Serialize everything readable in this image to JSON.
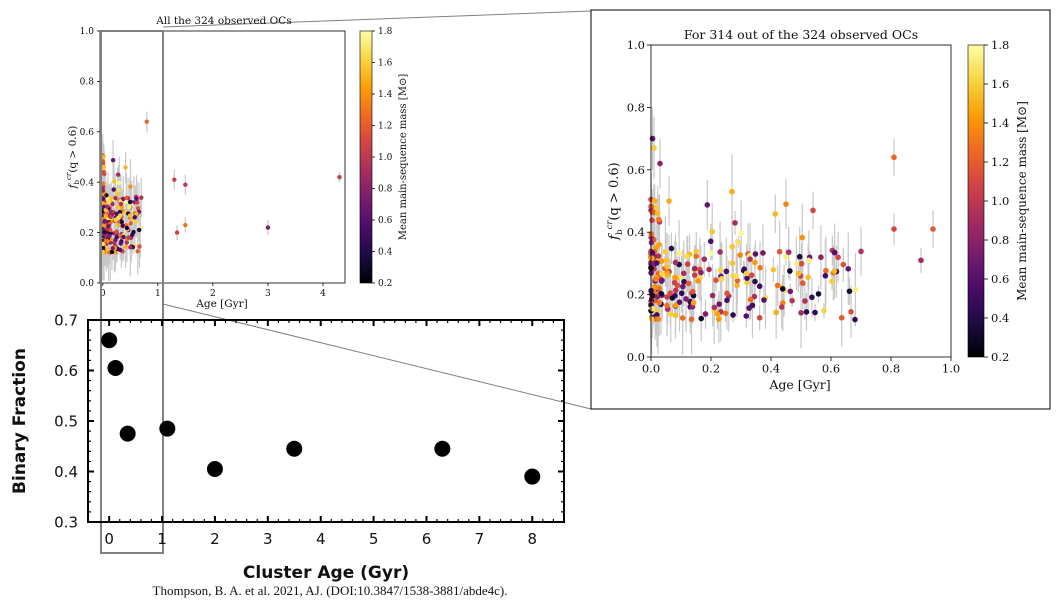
{
  "caption": "Thompson, B. A. et al. 2021, AJ. (DOI:10.3847/1538-3881/abde4c).",
  "colorbar": {
    "label": "Mean main-sequence mass [M⊙]",
    "ticks": [
      "0.2",
      "0.4",
      "0.6",
      "0.8",
      "1.0",
      "1.2",
      "1.4",
      "1.6",
      "1.8"
    ],
    "colormap_stops": [
      "#000004",
      "#1b0c41",
      "#4a0c6b",
      "#781c6d",
      "#a52c60",
      "#cf4446",
      "#ed6925",
      "#fb9b06",
      "#f7d13d",
      "#fcffa4"
    ]
  },
  "colors": {
    "frame": "#000000",
    "errorbar": "#c8c8c8",
    "zoom_box": "#808080",
    "connector": "#808080"
  },
  "chart_data": [
    {
      "id": "top_left",
      "type": "scatter",
      "title": "All the 324 observed OCs",
      "xlabel": "Age [Gyr]",
      "ylabel": "f_b^{cr}(q > 0.6)",
      "xlim": [
        -0.05,
        4.4
      ],
      "ylim": [
        0.0,
        1.0
      ],
      "xticks": [
        "0",
        "1",
        "2",
        "3",
        "4"
      ],
      "yticks": [
        "0.0",
        "0.2",
        "0.4",
        "0.6",
        "0.8",
        "1.0"
      ],
      "grid": false,
      "highlighted_points": [
        {
          "x": 0.8,
          "y": 0.64,
          "err": 0.04,
          "mass": 1.25
        },
        {
          "x": 1.3,
          "y": 0.41,
          "err": 0.04,
          "mass": 1.05
        },
        {
          "x": 1.5,
          "y": 0.39,
          "err": 0.04,
          "mass": 1.0
        },
        {
          "x": 1.35,
          "y": 0.2,
          "err": 0.03,
          "mass": 1.1
        },
        {
          "x": 1.5,
          "y": 0.23,
          "err": 0.03,
          "mass": 1.3
        },
        {
          "x": 3.0,
          "y": 0.22,
          "err": 0.03,
          "mass": 0.75
        },
        {
          "x": 4.3,
          "y": 0.42,
          "err": 0.02,
          "mass": 1.05
        }
      ]
    },
    {
      "id": "right_zoom",
      "type": "scatter",
      "title": "For 314 out of the 324 observed OCs",
      "xlabel": "Age [Gyr]",
      "ylabel": "f_b^{cr}(q > 0.6)",
      "xlim": [
        0.0,
        1.0
      ],
      "ylim": [
        0.0,
        1.0
      ],
      "xticks": [
        "0.0",
        "0.2",
        "0.4",
        "0.6",
        "0.8",
        "1.0"
      ],
      "yticks": [
        "0.0",
        "0.2",
        "0.4",
        "0.6",
        "0.8",
        "1.0"
      ],
      "grid": false,
      "highlighted_points": [
        {
          "x": 0.81,
          "y": 0.64,
          "err": 0.06,
          "mass": 1.25
        },
        {
          "x": 0.94,
          "y": 0.41,
          "err": 0.06,
          "mass": 1.2
        },
        {
          "x": 0.9,
          "y": 0.31,
          "err": 0.04,
          "mass": 0.9
        },
        {
          "x": 0.81,
          "y": 0.41,
          "err": 0.05,
          "mass": 1.1
        },
        {
          "x": 0.45,
          "y": 0.49,
          "err": 0.08,
          "mass": 1.35
        },
        {
          "x": 0.54,
          "y": 0.47,
          "err": 0.06,
          "mass": 1.1
        },
        {
          "x": 0.68,
          "y": 0.12,
          "err": 0.02,
          "mass": 0.45
        },
        {
          "x": 0.005,
          "y": 0.7,
          "err": 0.1,
          "mass": 0.6
        },
        {
          "x": 0.01,
          "y": 0.67,
          "err": 0.1,
          "mass": 1.6
        },
        {
          "x": 0.03,
          "y": 0.62,
          "err": 0.08,
          "mass": 0.8
        },
        {
          "x": 0.06,
          "y": 0.5,
          "err": 0.08,
          "mass": 1.5
        },
        {
          "x": 0.27,
          "y": 0.53,
          "err": 0.12,
          "mass": 1.5
        }
      ]
    },
    {
      "id": "bottom_left",
      "type": "scatter",
      "xlabel": "Cluster Age (Gyr)",
      "ylabel": "Binary Fraction",
      "xlim": [
        -0.4,
        8.6
      ],
      "ylim": [
        0.3,
        0.7
      ],
      "xticks": [
        "0",
        "1",
        "2",
        "3",
        "4",
        "5",
        "6",
        "7",
        "8"
      ],
      "yticks": [
        "0.3",
        "0.4",
        "0.5",
        "0.6",
        "0.7"
      ],
      "grid": false,
      "x": [
        0.0,
        0.12,
        0.35,
        1.1,
        2.0,
        3.5,
        6.3,
        8.0
      ],
      "y": [
        0.66,
        0.605,
        0.475,
        0.485,
        0.405,
        0.445,
        0.445,
        0.39
      ]
    }
  ]
}
